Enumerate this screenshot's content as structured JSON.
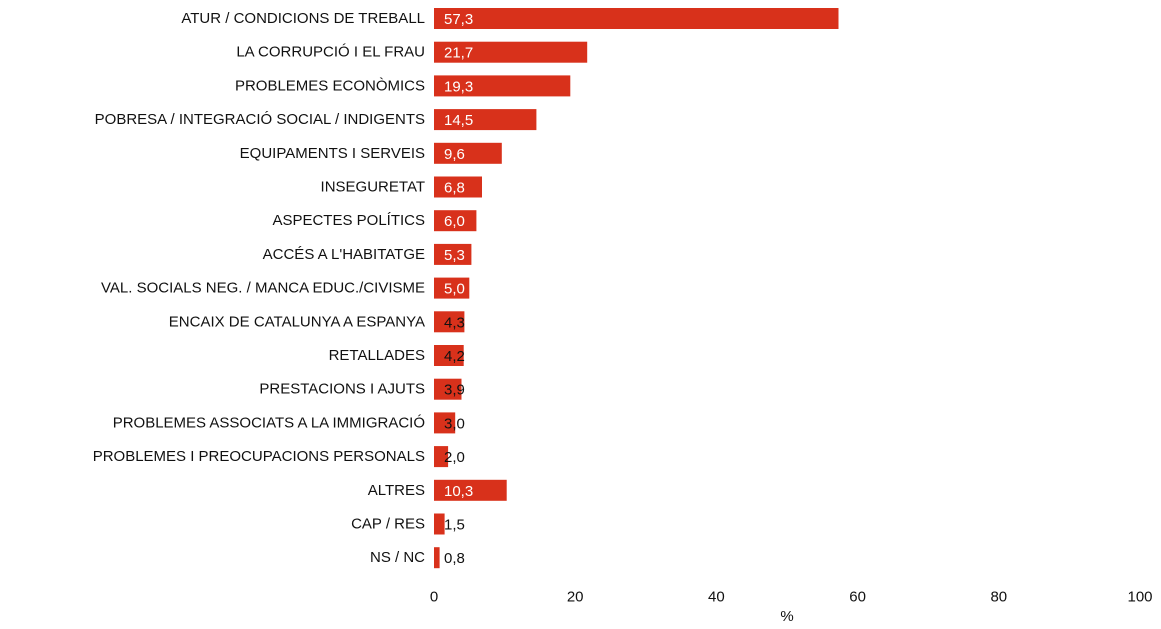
{
  "chart_data": {
    "type": "bar",
    "orientation": "horizontal",
    "categories": [
      "ATUR / CONDICIONS DE TREBALL",
      "LA CORRUPCIÓ I EL FRAU",
      "PROBLEMES ECONÒMICS",
      "POBRESA / INTEGRACIÓ SOCIAL / INDIGENTS",
      "EQUIPAMENTS I SERVEIS",
      "INSEGURETAT",
      "ASPECTES POLÍTICS",
      "ACCÉS A L'HABITATGE",
      "VAL. SOCIALS NEG. / MANCA EDUC./CIVISME",
      "ENCAIX DE CATALUNYA A ESPANYA",
      "RETALLADES",
      "PRESTACIONS I AJUTS",
      "PROBLEMES ASSOCIATS A LA IMMIGRACIÓ",
      "PROBLEMES I PREOCUPACIONS PERSONALS",
      "ALTRES",
      "CAP / RES",
      "NS / NC"
    ],
    "values": [
      57.3,
      21.7,
      19.3,
      14.5,
      9.6,
      6.8,
      6.0,
      5.3,
      5.0,
      4.3,
      4.2,
      3.9,
      3.0,
      2.0,
      10.3,
      1.5,
      0.8
    ],
    "value_labels": [
      "57,3",
      "21,7",
      "19,3",
      "14,5",
      "9,6",
      "6,8",
      "6,0",
      "5,3",
      "5,0",
      "4,3",
      "4,2",
      "3,9",
      "3,0",
      "2,0",
      "10,3",
      "1,5",
      "0,8"
    ],
    "xlabel": "%",
    "xlim": [
      0,
      100
    ],
    "x_ticks": [
      0,
      20,
      40,
      60,
      80,
      100
    ],
    "x_tick_labels": [
      "0",
      "20",
      "40",
      "60",
      "80",
      "100"
    ],
    "grid": false,
    "bar_color": "#d8311b"
  }
}
